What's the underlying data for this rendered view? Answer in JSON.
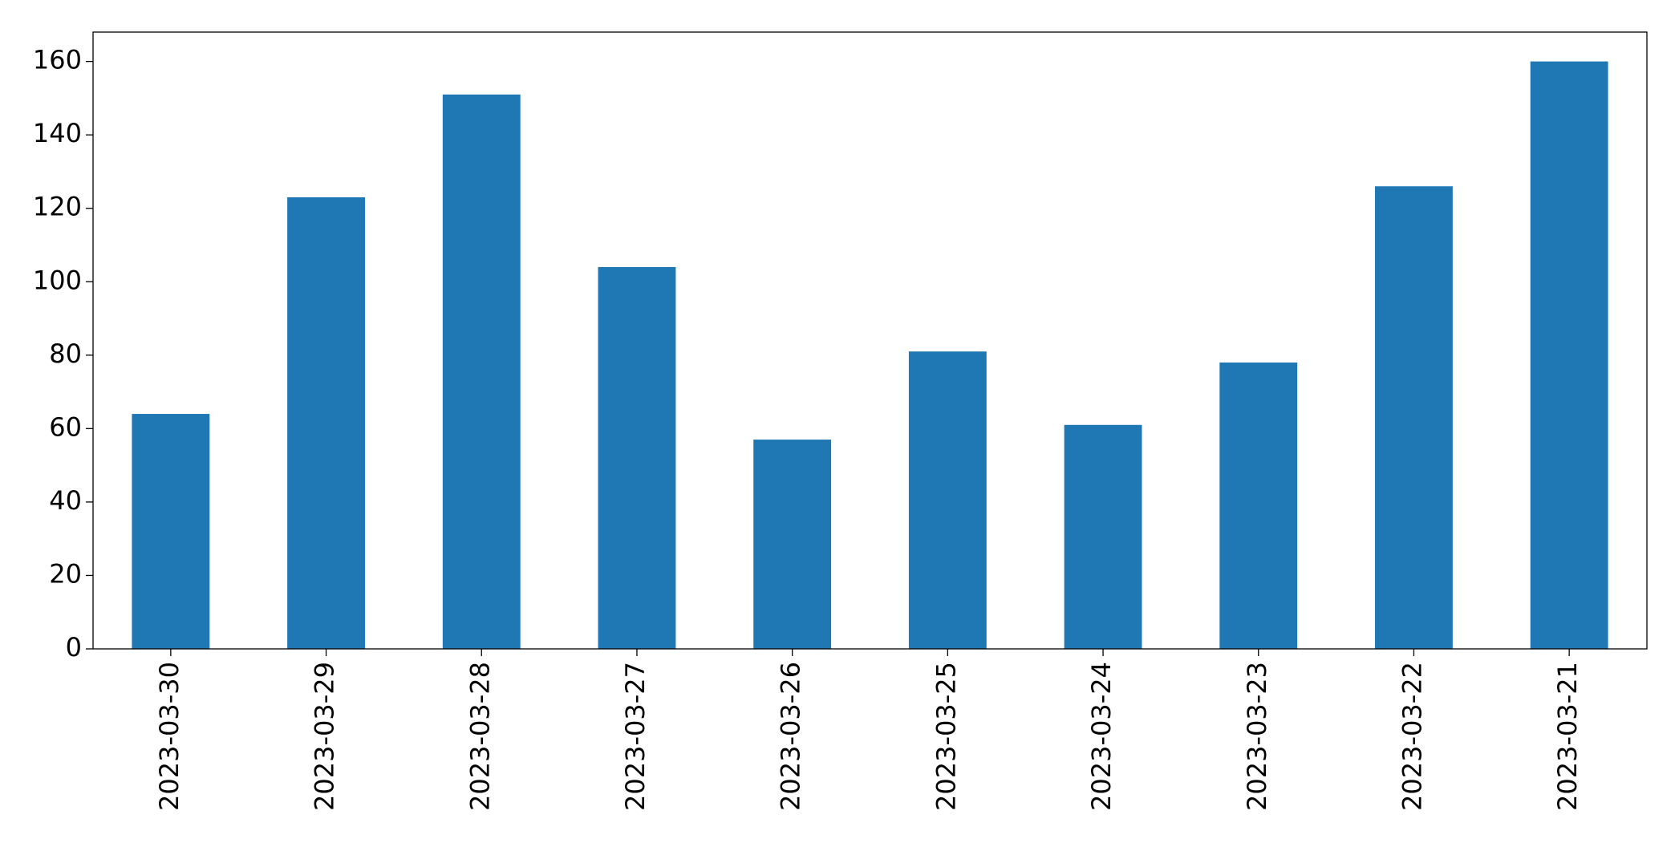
{
  "chart_data": {
    "type": "bar",
    "categories": [
      "2023-03-30",
      "2023-03-29",
      "2023-03-28",
      "2023-03-27",
      "2023-03-26",
      "2023-03-25",
      "2023-03-24",
      "2023-03-23",
      "2023-03-22",
      "2023-03-21"
    ],
    "values": [
      64,
      123,
      151,
      104,
      57,
      81,
      61,
      78,
      126,
      160
    ],
    "color": "#1f77b4",
    "ylim": [
      0,
      168
    ],
    "yticks": [
      0,
      20,
      40,
      60,
      80,
      100,
      120,
      140,
      160
    ],
    "grid": false
  }
}
